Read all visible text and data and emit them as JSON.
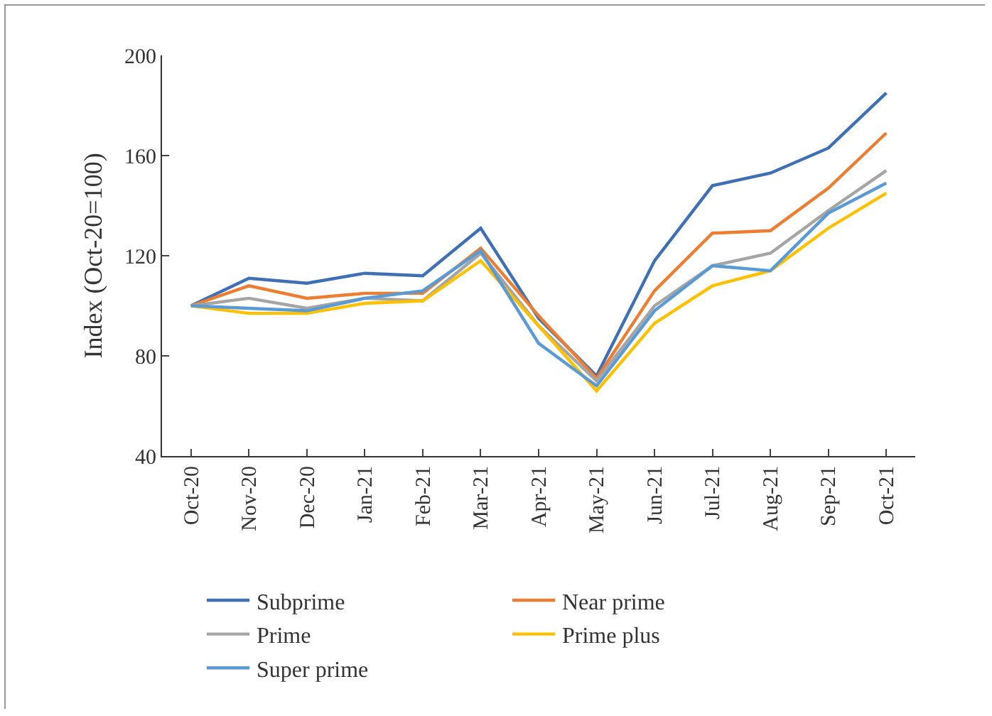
{
  "chart_data": {
    "type": "line",
    "ylabel": "Index (Oct-20=100)",
    "categories": [
      "Oct-20",
      "Nov-20",
      "Dec-20",
      "Jan-21",
      "Feb-21",
      "Mar-21",
      "Apr-21",
      "May-21",
      "Jun-21",
      "Jul-21",
      "Aug-21",
      "Sep-21",
      "Oct-21"
    ],
    "series": [
      {
        "name": "Subprime",
        "color": "#3f6fb5",
        "values": [
          100,
          111,
          109,
          113,
          112,
          131,
          95,
          72,
          118,
          148,
          153,
          163,
          185
        ]
      },
      {
        "name": "Near prime",
        "color": "#ed7d31",
        "values": [
          100,
          108,
          103,
          105,
          105,
          123,
          96,
          71,
          106,
          129,
          130,
          147,
          169
        ]
      },
      {
        "name": "Prime",
        "color": "#a5a5a5",
        "values": [
          100,
          103,
          99,
          103,
          102,
          121,
          92,
          70,
          100,
          116,
          121,
          138,
          154
        ]
      },
      {
        "name": "Prime plus",
        "color": "#ffc000",
        "values": [
          100,
          97,
          97,
          101,
          102,
          118,
          92,
          66,
          93,
          108,
          114,
          131,
          145
        ]
      },
      {
        "name": "Super prime",
        "color": "#5b9bd5",
        "values": [
          100,
          99,
          98,
          103,
          106,
          122,
          85,
          68,
          98,
          116,
          114,
          137,
          149
        ]
      }
    ],
    "ylim": [
      40,
      200
    ],
    "yticks": [
      40,
      80,
      120,
      160,
      200
    ],
    "grid": false,
    "legend": "bottom",
    "marker": "none",
    "line_style": "solid"
  }
}
